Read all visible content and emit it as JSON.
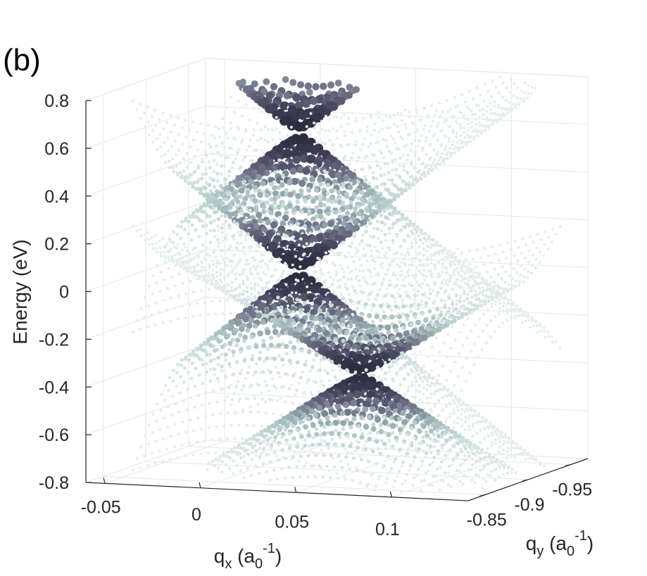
{
  "panel_label": "(b)",
  "chart_data": {
    "type": "scatter",
    "title": "",
    "xlabel": "q_x (a_0^-1)",
    "xlabel_parts": {
      "q": "q",
      "sub": "x",
      "open": "(a",
      "sub2": "0",
      "sup": "-1",
      "close": ")"
    },
    "ylabel_parts": {
      "q": "q",
      "sub": "y",
      "open": "(a",
      "sub2": "0",
      "sup": "-1",
      "close": ")"
    },
    "zlabel": "Energy  (eV)",
    "xlim": [
      -0.06,
      0.14
    ],
    "ylim": [
      -0.97,
      -0.83
    ],
    "zlim": [
      -0.8,
      0.8
    ],
    "x_ticks": [
      "-0.05",
      "0",
      "0.05",
      "0.1"
    ],
    "x_tick_values": [
      -0.05,
      0,
      0.05,
      0.1
    ],
    "y_ticks": [
      "-0.95",
      "-0.9",
      "-0.85"
    ],
    "y_tick_values": [
      -0.95,
      -0.9,
      -0.85
    ],
    "z_ticks": [
      "0.8",
      "0.6",
      "0.4",
      "0.2",
      "0",
      "-0.2",
      "-0.4",
      "-0.6",
      "-0.8"
    ],
    "z_tick_values": [
      0.8,
      0.6,
      0.4,
      0.2,
      0,
      -0.2,
      -0.4,
      -0.6,
      -0.8
    ],
    "grid": true,
    "colormap": [
      "#1a1a26",
      "#3f3d55",
      "#6e7186",
      "#9fb5b8",
      "#c9dcda",
      "#eef4f3"
    ],
    "bands": [
      {
        "name": "",
        "dirac_point": [
          0.018,
          -0.905,
          0.6
        ],
        "velocity": 6.5,
        "curvature": 0.0
      },
      {
        "name": "",
        "dirac_point": [
          0.018,
          -0.905,
          0.02
        ],
        "velocity": 6.5,
        "curvature": 0.0
      },
      {
        "name": "",
        "dirac_point": [
          0.05,
          -0.905,
          -0.4
        ],
        "velocity": 5.0,
        "curvature": -1.0
      }
    ]
  }
}
